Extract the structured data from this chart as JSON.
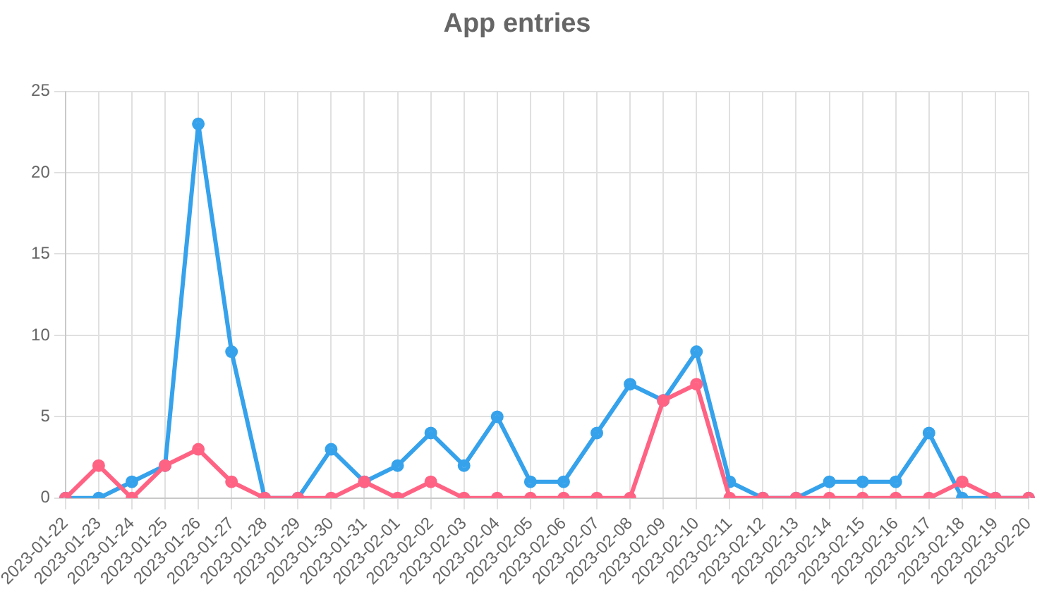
{
  "chart_data": {
    "type": "line",
    "title": "App entries",
    "categories": [
      "2023-01-22",
      "2023-01-23",
      "2023-01-24",
      "2023-01-25",
      "2023-01-26",
      "2023-01-27",
      "2023-01-28",
      "2023-01-29",
      "2023-01-30",
      "2023-01-31",
      "2023-02-01",
      "2023-02-02",
      "2023-02-03",
      "2023-02-04",
      "2023-02-05",
      "2023-02-06",
      "2023-02-07",
      "2023-02-08",
      "2023-02-09",
      "2023-02-10",
      "2023-02-11",
      "2023-02-12",
      "2023-02-13",
      "2023-02-14",
      "2023-02-15",
      "2023-02-16",
      "2023-02-17",
      "2023-02-18",
      "2023-02-19",
      "2023-02-20"
    ],
    "series": [
      {
        "color": "#ff6384",
        "values": [
          0,
          2,
          0,
          2,
          3,
          1,
          0,
          0,
          0,
          1,
          0,
          1,
          0,
          0,
          0,
          0,
          0,
          0,
          6,
          7,
          0,
          0,
          0,
          0,
          0,
          0,
          0,
          1,
          0,
          0
        ]
      },
      {
        "color": "#36a2eb",
        "values": [
          0,
          0,
          1,
          2,
          23,
          9,
          0,
          0,
          3,
          1,
          2,
          4,
          2,
          5,
          1,
          1,
          4,
          7,
          6,
          9,
          1,
          0,
          0,
          1,
          1,
          1,
          4,
          0,
          0,
          0
        ]
      }
    ],
    "ylim": [
      0,
      25
    ],
    "yticks": [
      0,
      5,
      10,
      15,
      20,
      25
    ],
    "grid": true,
    "legend": false,
    "marker": "circle",
    "line_style": "solid"
  }
}
